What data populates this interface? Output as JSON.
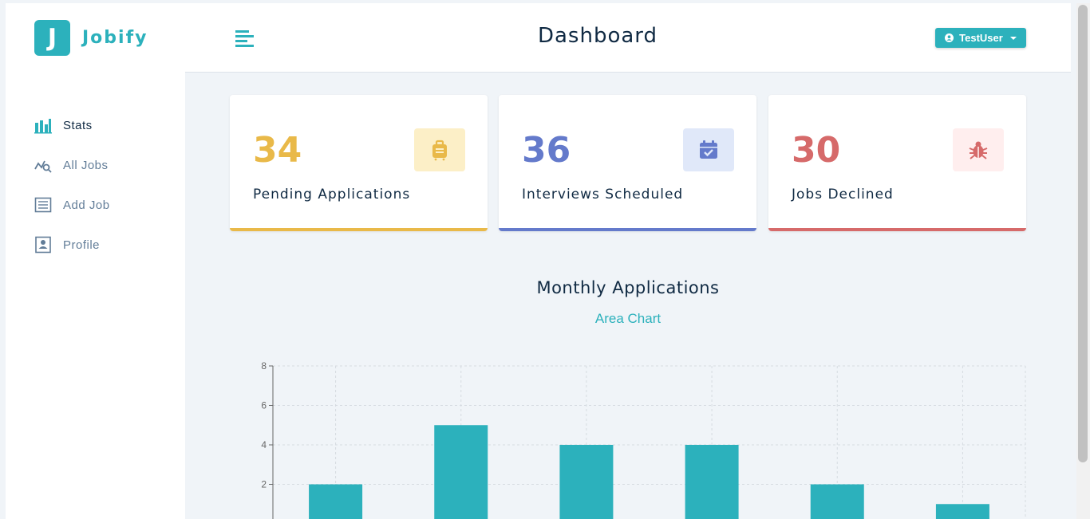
{
  "brand": {
    "letter": "J",
    "name": "Jobify"
  },
  "sidebar": {
    "items": [
      {
        "label": "Stats",
        "icon": "bar-chart-icon",
        "active": true
      },
      {
        "label": "All Jobs",
        "icon": "query-stats-icon",
        "active": false
      },
      {
        "label": "Add Job",
        "icon": "form-icon",
        "active": false
      },
      {
        "label": "Profile",
        "icon": "profile-icon",
        "active": false
      }
    ]
  },
  "header": {
    "title": "Dashboard",
    "user": "TestUser"
  },
  "stats": [
    {
      "count": "34",
      "label": "Pending Applications",
      "icon": "suitcase-icon",
      "color": "#e9b949",
      "bg": "#fcefc7"
    },
    {
      "count": "36",
      "label": "Interviews Scheduled",
      "icon": "calendar-check-icon",
      "color": "#647acb",
      "bg": "#e0e8f9"
    },
    {
      "count": "30",
      "label": "Jobs Declined",
      "icon": "bug-icon",
      "color": "#d66a6a",
      "bg": "#ffeeee"
    }
  ],
  "chart": {
    "heading": "Monthly Applications",
    "toggle": "Area Chart"
  },
  "colors": {
    "accent": "#2cb1bc",
    "bar": "#2cb1bc",
    "text": "#102a43",
    "muted": "#627d98"
  },
  "chart_data": {
    "type": "bar",
    "categories": [
      "",
      "",
      "",
      "",
      "",
      ""
    ],
    "values": [
      2,
      5,
      4,
      4,
      2,
      1
    ],
    "yticks": [
      "2",
      "4",
      "6",
      "8"
    ],
    "ylim": [
      0,
      8
    ],
    "grid": true,
    "title": "",
    "xlabel": "",
    "ylabel": ""
  }
}
